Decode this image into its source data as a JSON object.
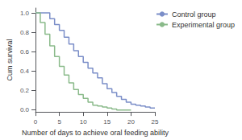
{
  "chart_data": {
    "type": "step",
    "xlabel": "Number of days to achieve oral feeding ability",
    "ylabel": "Cum survival",
    "xlim": [
      0,
      25
    ],
    "ylim": [
      -0.02,
      1.05
    ],
    "xticks": [
      0,
      5,
      10,
      15,
      20,
      25
    ],
    "yticks": [
      {
        "value": 0.0,
        "label": "0.0"
      },
      0.2,
      0.4,
      0.6,
      0.8,
      {
        "value": 1.0,
        "label": "1.0"
      }
    ],
    "grid": false,
    "legend": "right",
    "series": [
      {
        "name": "Control group",
        "color": "#7b8ec8",
        "x": [
          0,
          2,
          3,
          4,
          5,
          6,
          7,
          8,
          9,
          10,
          11,
          12,
          13,
          14,
          15,
          16,
          17,
          18,
          19,
          20,
          21,
          22,
          23,
          24,
          25
        ],
        "values": [
          1.0,
          1.0,
          0.94,
          0.88,
          0.82,
          0.75,
          0.68,
          0.61,
          0.55,
          0.49,
          0.43,
          0.38,
          0.33,
          0.27,
          0.22,
          0.18,
          0.14,
          0.11,
          0.08,
          0.06,
          0.05,
          0.04,
          0.03,
          0.02,
          0.02
        ]
      },
      {
        "name": "Experimental group",
        "color": "#8aba8a",
        "x": [
          0,
          1,
          2,
          3,
          4,
          5,
          6,
          7,
          8,
          9,
          10,
          11,
          12,
          13,
          14,
          15,
          16,
          17,
          18,
          19,
          20
        ],
        "values": [
          1.0,
          0.9,
          0.78,
          0.66,
          0.55,
          0.45,
          0.36,
          0.28,
          0.21,
          0.16,
          0.12,
          0.08,
          0.05,
          0.04,
          0.03,
          0.02,
          0.01,
          0.0,
          0.0,
          0.0,
          0.0
        ]
      }
    ]
  }
}
